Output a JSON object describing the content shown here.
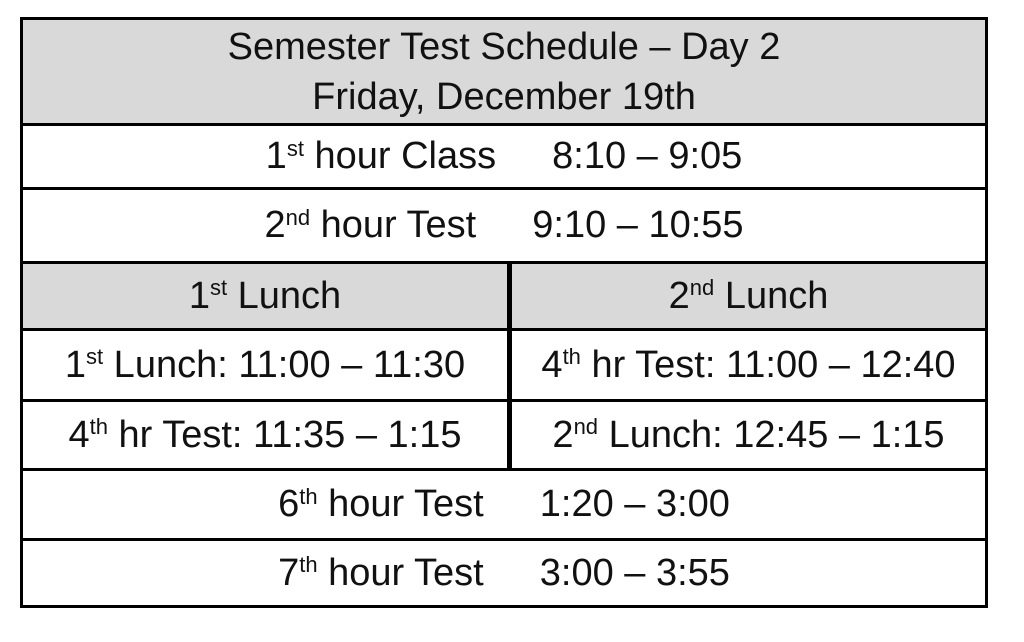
{
  "title": {
    "line1": "Semester Test Schedule – Day 2",
    "line2": "Friday, December 19th"
  },
  "rows": {
    "hour1": {
      "num": "1",
      "sup": "st",
      "label": " hour Class",
      "time": "8:10 – 9:05"
    },
    "hour2": {
      "num": "2",
      "sup": "nd",
      "label": " hour Test",
      "time": "9:10 – 10:55"
    },
    "lunch_header": {
      "left": {
        "num": "1",
        "sup": "st",
        "label": " Lunch"
      },
      "right": {
        "num": "2",
        "sup": "nd",
        "label": " Lunch"
      }
    },
    "lunch_slot1": {
      "left": {
        "num": "1",
        "sup": "st",
        "label": " Lunch: 11:00 – 11:30"
      },
      "right": {
        "num": "4",
        "sup": "th",
        "label": " hr Test: 11:00 – 12:40"
      }
    },
    "lunch_slot2": {
      "left": {
        "num": "4",
        "sup": "th",
        "label": " hr Test: 11:35 – 1:15"
      },
      "right": {
        "num": "2",
        "sup": "nd",
        "label": " Lunch: 12:45 – 1:15"
      }
    },
    "hour6": {
      "num": "6",
      "sup": "th",
      "label": " hour Test",
      "time": "1:20 – 3:00"
    },
    "hour7": {
      "num": "7",
      "sup": "th",
      "label": " hour Test",
      "time": "3:00 – 3:55"
    }
  },
  "colors": {
    "page_bg": "#ffffff",
    "header_bg": "#d9d9d9",
    "border": "#000000",
    "text": "#111111"
  }
}
